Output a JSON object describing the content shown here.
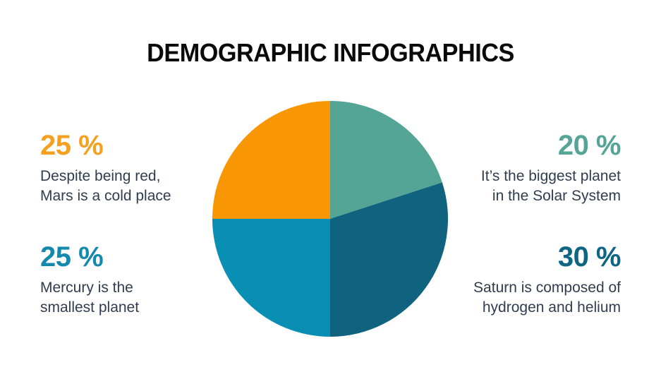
{
  "title": {
    "text": "DEMOGRAPHIC INFOGRAPHICS",
    "color": "#0a0a0a"
  },
  "body_text_color": "#313d4f",
  "callouts": {
    "top_left": {
      "pct": "25 %",
      "pct_color": "#F5A01F",
      "line1": "Despite being red,",
      "line2": "Mars is a cold place"
    },
    "bottom_left": {
      "pct": "25 %",
      "pct_color": "#1489AE",
      "line1": "Mercury is the",
      "line2": "smallest planet"
    },
    "top_right": {
      "pct": "20 %",
      "pct_color": "#55A596",
      "line1": "It’s the biggest planet",
      "line2": "in the Solar System"
    },
    "bottom_right": {
      "pct": "30 %",
      "pct_color": "#0E6584",
      "line1": "Saturn is composed of",
      "line2": "hydrogen and helium"
    }
  },
  "chart_data": {
    "type": "pie",
    "title": "DEMOGRAPHIC INFOGRAPHICS",
    "units": "%",
    "start_angle_deg": 0,
    "direction": "clockwise",
    "legend_position": "none",
    "slices": [
      {
        "label": "It’s the biggest planet in the Solar System",
        "value": 20,
        "color": "#55A596"
      },
      {
        "label": "Saturn is composed of hydrogen and helium",
        "value": 30,
        "color": "#10637F"
      },
      {
        "label": "Mercury is the smallest planet",
        "value": 25,
        "color": "#0A8FB4"
      },
      {
        "label": "Despite being red, Mars is a cold place",
        "value": 25,
        "color": "#F89703"
      }
    ]
  }
}
